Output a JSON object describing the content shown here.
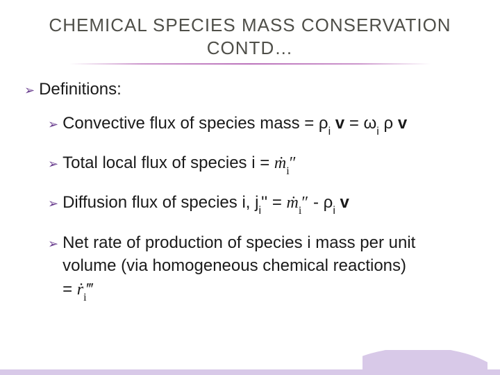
{
  "title_line1": "CHEMICAL SPECIES MASS CONSERVATION",
  "title_line2": "CONTD…",
  "definitions_label": "Definitions:",
  "items": {
    "convective_pre": "Convective flux of species mass = ",
    "convective_rho": "ρ",
    "convective_i1": "i",
    "convective_v1": " v",
    "convective_eq": " = ",
    "convective_w": "ω",
    "convective_i2": "i",
    "convective_sp": " ",
    "convective_rho2": "ρ",
    "convective_v2": " v",
    "total_pre": "Total local flux of species i = ",
    "diffusion_pre": "Diffusion flux of species i, j",
    "diffusion_ji": "i",
    "diffusion_dq": "''",
    "diffusion_eq": " = ",
    "diffusion_minus": " - ",
    "diffusion_rho": "ρ",
    "diffusion_i": "i",
    "diffusion_v": " v",
    "net_line1": "Net rate of production of species i mass per unit",
    "net_line2a": "volume (via homogeneous chemical reactions)",
    "net_line3a": "= "
  },
  "colors": {
    "title": "#4f4f49",
    "body": "#1a1a1a",
    "bullet": "#6a3f8f",
    "underline": "#aa50aa",
    "accent_fill": "#d8c9e8",
    "background": "#ffffff"
  },
  "fonts": {
    "title_size_pt": 20,
    "body_size_pt": 18,
    "sub_size_pt": 12
  }
}
